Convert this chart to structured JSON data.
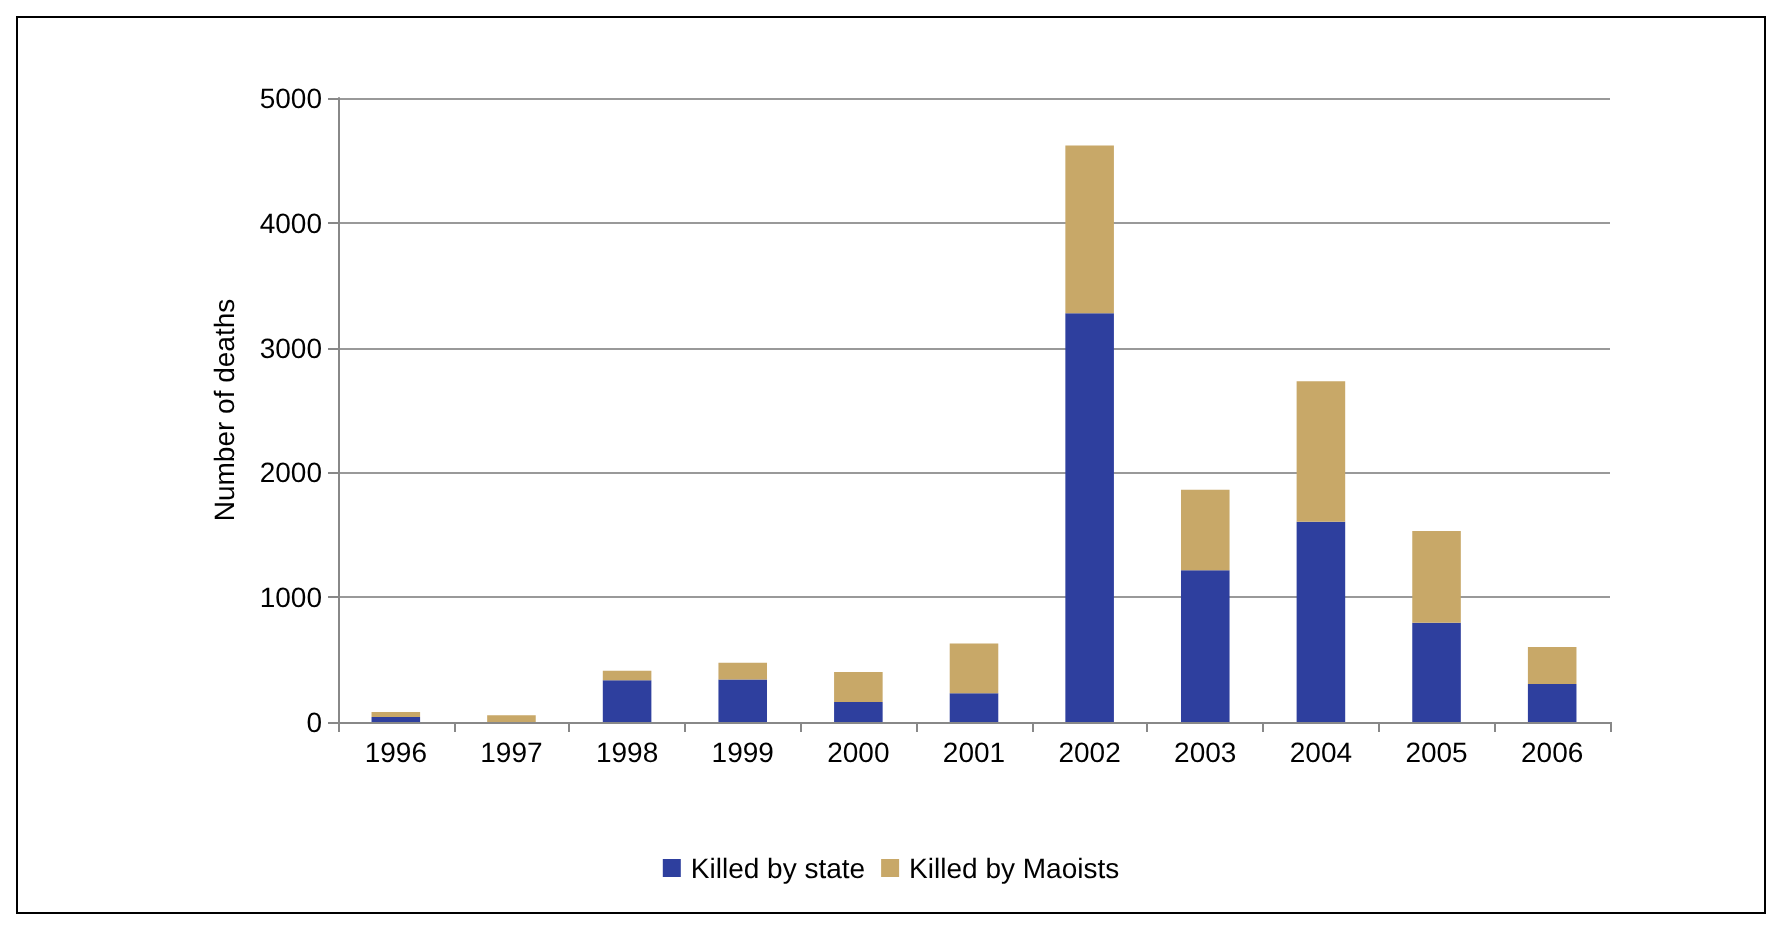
{
  "chart_data": {
    "type": "bar",
    "stacked": true,
    "ylabel": "Number of deaths",
    "categories": [
      "1996",
      "1997",
      "1998",
      "1999",
      "2000",
      "2001",
      "2002",
      "2003",
      "2004",
      "2005",
      "2006"
    ],
    "series": [
      {
        "name": "Killed by state",
        "color": "#2e3f9e",
        "values": [
          40,
          0,
          335,
          340,
          160,
          230,
          3275,
          1215,
          1605,
          795,
          305
        ]
      },
      {
        "name": "Killed by Maoists",
        "color": "#c8a868",
        "values": [
          40,
          55,
          75,
          135,
          240,
          400,
          1345,
          645,
          1125,
          735,
          295
        ]
      }
    ],
    "ylim": [
      0,
      5000
    ],
    "yticks": [
      0,
      1000,
      2000,
      3000,
      4000,
      5000
    ],
    "grid": "y",
    "legend": "bottom"
  }
}
